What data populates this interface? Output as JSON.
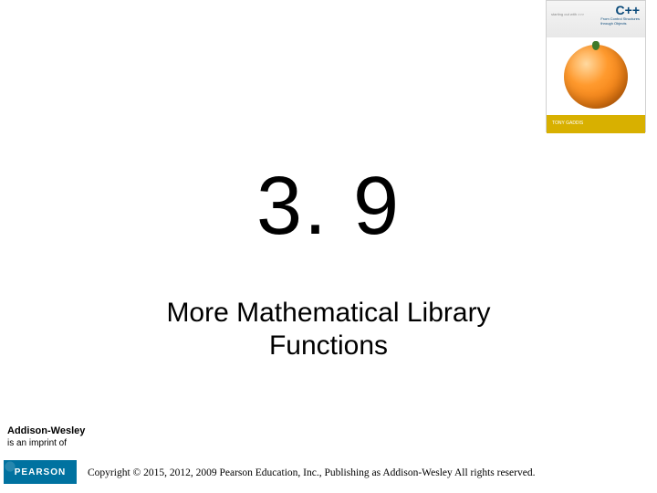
{
  "book": {
    "starting": "starting out with >>>",
    "lang": "C++",
    "subtitle1": "From Control Structures",
    "subtitle2": "through Objects",
    "author": "TONY GADDIS"
  },
  "slide": {
    "section_number": "3. 9",
    "title_line1": "More Mathematical Library",
    "title_line2": "Functions"
  },
  "footer": {
    "imprint_line1": "Addison-Wesley",
    "imprint_line2": "is an imprint of",
    "publisher": "PEARSON",
    "copyright": "Copyright © 2015, 2012, 2009 Pearson Education, Inc., Publishing as Addison-Wesley All rights reserved."
  },
  "colors": {
    "pearson_bg": "#0072a0",
    "author_bar": "#d8b000",
    "cpp_color": "#0a4a7a"
  }
}
